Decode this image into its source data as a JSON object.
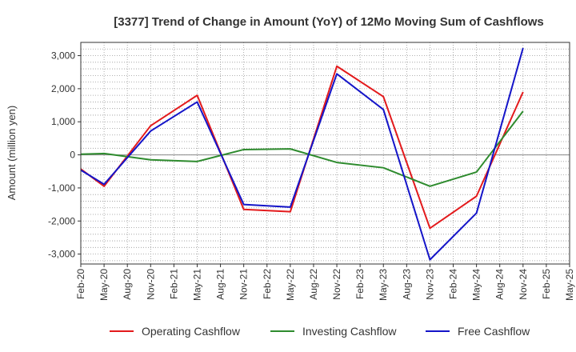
{
  "chart_data": {
    "type": "line",
    "title": "[3377]  Trend of Change in Amount (YoY) of 12Mo Moving Sum of Cashflows",
    "xlabel": "",
    "ylabel": "Amount (million yen)",
    "ylim": [
      -3300,
      3400
    ],
    "yticks": [
      3000,
      2000,
      1000,
      0,
      -1000,
      -2000,
      -3000
    ],
    "ytick_labels": [
      "3,000",
      "2,000",
      "1,000",
      "0",
      "-1,000",
      "-2,000",
      "-3,000"
    ],
    "categories": [
      "Feb-20",
      "May-20",
      "Aug-20",
      "Nov-20",
      "Feb-21",
      "May-21",
      "Aug-21",
      "Nov-21",
      "Feb-22",
      "May-22",
      "Aug-22",
      "Nov-22",
      "Feb-23",
      "May-23",
      "Aug-23",
      "Nov-23",
      "Feb-24",
      "May-24",
      "Aug-24",
      "Nov-24",
      "Feb-25",
      "May-25"
    ],
    "grid": true,
    "legend_position": "bottom",
    "series": [
      {
        "name": "Operating Cashflow",
        "color": "#e31a1c",
        "values": [
          -430,
          -950,
          null,
          880,
          null,
          1800,
          null,
          -1650,
          null,
          -1720,
          null,
          2680,
          null,
          1760,
          null,
          -2220,
          null,
          -1250,
          null,
          1900,
          null,
          null
        ]
      },
      {
        "name": "Investing Cashflow",
        "color": "#2e8b2e",
        "values": [
          20,
          40,
          null,
          -150,
          null,
          -200,
          null,
          160,
          null,
          180,
          null,
          -230,
          null,
          -390,
          null,
          -950,
          null,
          -520,
          null,
          1320,
          null,
          null
        ]
      },
      {
        "name": "Free Cashflow",
        "color": "#1414c8",
        "values": [
          -460,
          -890,
          null,
          720,
          null,
          1600,
          null,
          -1500,
          null,
          -1580,
          null,
          2450,
          null,
          1370,
          null,
          -3170,
          null,
          -1760,
          null,
          3230,
          null,
          null
        ]
      }
    ]
  }
}
